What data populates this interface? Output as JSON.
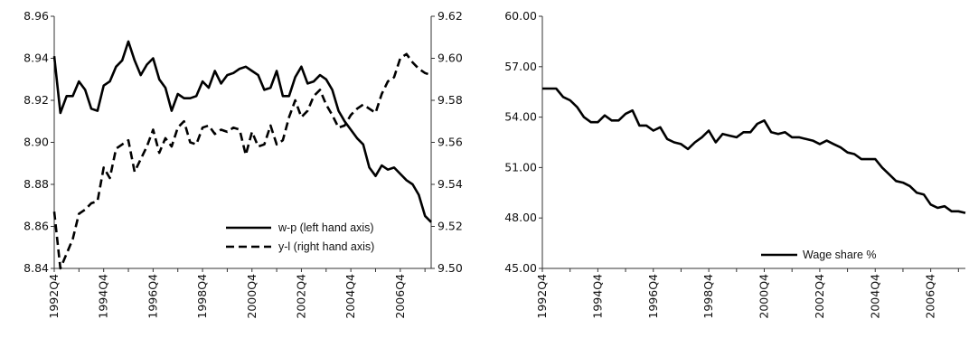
{
  "chart_data": [
    {
      "type": "line",
      "x": [
        "1992Q4",
        "1993Q1",
        "1993Q2",
        "1993Q3",
        "1993Q4",
        "1994Q1",
        "1994Q2",
        "1994Q3",
        "1994Q4",
        "1995Q1",
        "1995Q2",
        "1995Q3",
        "1995Q4",
        "1996Q1",
        "1996Q2",
        "1996Q3",
        "1996Q4",
        "1997Q1",
        "1997Q2",
        "1997Q3",
        "1997Q4",
        "1998Q1",
        "1998Q2",
        "1998Q3",
        "1998Q4",
        "1999Q1",
        "1999Q2",
        "1999Q3",
        "1999Q4",
        "2000Q1",
        "2000Q2",
        "2000Q3",
        "2000Q4",
        "2001Q1",
        "2001Q2",
        "2001Q3",
        "2001Q4",
        "2002Q1",
        "2002Q2",
        "2002Q3",
        "2002Q4",
        "2003Q1",
        "2003Q2",
        "2003Q3",
        "2003Q4",
        "2004Q1",
        "2004Q2",
        "2004Q3",
        "2004Q4",
        "2005Q1",
        "2005Q2",
        "2005Q3",
        "2005Q4",
        "2006Q1",
        "2006Q2",
        "2006Q3",
        "2006Q4",
        "2007Q1",
        "2007Q2",
        "2007Q3",
        "2007Q4",
        "2008Q1"
      ],
      "tick_labels": [
        "1992Q4",
        "1994Q4",
        "1996Q4",
        "1998Q4",
        "2000Q4",
        "2002Q4",
        "2004Q4",
        "2006Q4"
      ],
      "left_axis": {
        "ylim": [
          8.84,
          8.96
        ],
        "ticks": [
          "8.84",
          "8.86",
          "8.88",
          "8.90",
          "8.92",
          "8.94",
          "8.96"
        ]
      },
      "right_axis": {
        "ylim": [
          9.5,
          9.62
        ],
        "ticks": [
          "9.50",
          "9.52",
          "9.54",
          "9.56",
          "9.58",
          "9.60",
          "9.62"
        ]
      },
      "series": [
        {
          "name": "w-p (left hand axis)",
          "axis": "left",
          "style": "solid",
          "values": [
            8.941,
            8.914,
            8.922,
            8.922,
            8.929,
            8.925,
            8.916,
            8.915,
            8.927,
            8.929,
            8.936,
            8.939,
            8.948,
            8.939,
            8.932,
            8.937,
            8.94,
            8.93,
            8.926,
            8.915,
            8.923,
            8.921,
            8.921,
            8.922,
            8.929,
            8.926,
            8.934,
            8.928,
            8.932,
            8.933,
            8.935,
            8.936,
            8.934,
            8.932,
            8.925,
            8.926,
            8.934,
            8.922,
            8.922,
            8.931,
            8.936,
            8.928,
            8.929,
            8.932,
            8.93,
            8.925,
            8.915,
            8.91,
            8.906,
            8.902,
            8.899,
            8.888,
            8.884,
            8.889,
            8.887,
            8.888,
            8.885,
            8.882,
            8.88,
            8.875,
            8.865,
            8.862
          ]
        },
        {
          "name": "y-l  (right hand axis)",
          "axis": "right",
          "style": "dashed",
          "values": [
            9.527,
            9.5,
            9.507,
            9.514,
            9.526,
            9.528,
            9.531,
            9.532,
            9.548,
            9.543,
            9.557,
            9.559,
            9.561,
            9.546,
            9.552,
            9.558,
            9.566,
            9.555,
            9.562,
            9.558,
            9.567,
            9.57,
            9.56,
            9.559,
            9.567,
            9.568,
            9.564,
            9.566,
            9.565,
            9.567,
            9.566,
            9.554,
            9.565,
            9.558,
            9.559,
            9.568,
            9.559,
            9.561,
            9.572,
            9.58,
            9.572,
            9.575,
            9.582,
            9.585,
            9.578,
            9.573,
            9.567,
            9.568,
            9.573,
            9.576,
            9.578,
            9.576,
            9.574,
            9.583,
            9.589,
            9.591,
            9.6,
            9.602,
            9.598,
            9.595,
            9.593,
            9.592
          ]
        }
      ],
      "legend": "bottom-right",
      "grid": false
    },
    {
      "type": "line",
      "x": [
        "1992Q4",
        "1993Q1",
        "1993Q2",
        "1993Q3",
        "1993Q4",
        "1994Q1",
        "1994Q2",
        "1994Q3",
        "1994Q4",
        "1995Q1",
        "1995Q2",
        "1995Q3",
        "1995Q4",
        "1996Q1",
        "1996Q2",
        "1996Q3",
        "1996Q4",
        "1997Q1",
        "1997Q2",
        "1997Q3",
        "1997Q4",
        "1998Q1",
        "1998Q2",
        "1998Q3",
        "1998Q4",
        "1999Q1",
        "1999Q2",
        "1999Q3",
        "1999Q4",
        "2000Q1",
        "2000Q2",
        "2000Q3",
        "2000Q4",
        "2001Q1",
        "2001Q2",
        "2001Q3",
        "2001Q4",
        "2002Q1",
        "2002Q2",
        "2002Q3",
        "2002Q4",
        "2003Q1",
        "2003Q2",
        "2003Q3",
        "2003Q4",
        "2004Q1",
        "2004Q2",
        "2004Q3",
        "2004Q4",
        "2005Q1",
        "2005Q2",
        "2005Q3",
        "2005Q4",
        "2006Q1",
        "2006Q2",
        "2006Q3",
        "2006Q4",
        "2007Q1",
        "2007Q2",
        "2007Q3",
        "2007Q4",
        "2008Q1"
      ],
      "tick_labels": [
        "1992Q4",
        "1994Q4",
        "1996Q4",
        "1998Q4",
        "2000Q4",
        "2002Q4",
        "2004Q4",
        "2006Q4"
      ],
      "ylim": [
        45.0,
        60.0
      ],
      "yticks": [
        "45.00",
        "48.00",
        "51.00",
        "54.00",
        "57.00",
        "60.00"
      ],
      "series": [
        {
          "name": "Wage share %",
          "style": "solid",
          "values": [
            55.7,
            55.7,
            55.7,
            55.2,
            55.0,
            54.6,
            54.0,
            53.7,
            53.7,
            54.1,
            53.8,
            53.8,
            54.2,
            54.4,
            53.5,
            53.5,
            53.2,
            53.4,
            52.7,
            52.5,
            52.4,
            52.1,
            52.5,
            52.8,
            53.2,
            52.5,
            53.0,
            52.9,
            52.8,
            53.1,
            53.1,
            53.6,
            53.8,
            53.1,
            53.0,
            53.1,
            52.8,
            52.8,
            52.7,
            52.6,
            52.4,
            52.6,
            52.4,
            52.2,
            51.9,
            51.8,
            51.5,
            51.5,
            51.5,
            51.0,
            50.6,
            50.2,
            50.1,
            49.9,
            49.5,
            49.4,
            48.8,
            48.6,
            48.7,
            48.4,
            48.4,
            48.3
          ]
        }
      ],
      "legend": "bottom-right",
      "grid": false
    }
  ]
}
